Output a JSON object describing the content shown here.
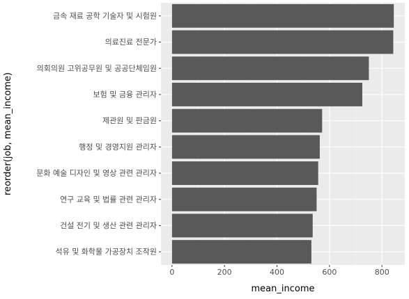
{
  "chart_data": {
    "type": "bar",
    "orientation": "horizontal",
    "categories": [
      "금속 재료 공학 기술자 및 시험원",
      "의료진료 전문가",
      "의회의원 고위공무원 및 공공단체임원",
      "보험 및 금융 관리자",
      "제관원 및 판금원",
      "행정 및 경영지원 관리자",
      "문화 예술 디자인 및 영상 관련 관리자",
      "연구 교육 및 법률 관련 관리자",
      "건설 전기 및 생산 관련 관리자",
      "석유 및 화학물 가공장치 조작원"
    ],
    "values": [
      845,
      843,
      750,
      725,
      572,
      563,
      557,
      551,
      536,
      531
    ],
    "xlabel": "mean_income",
    "ylabel": "reorder(job, mean_income)",
    "xticks": [
      0,
      200,
      400,
      600,
      800
    ],
    "xlim": [
      -42,
      887
    ],
    "grid": true,
    "colors": {
      "bar": "#595959",
      "panel": "#ebebeb",
      "grid_major": "#ffffff",
      "grid_minor": "#f5f5f5",
      "tick_text": "#4d4d4d",
      "axis_title": "#000000"
    }
  }
}
